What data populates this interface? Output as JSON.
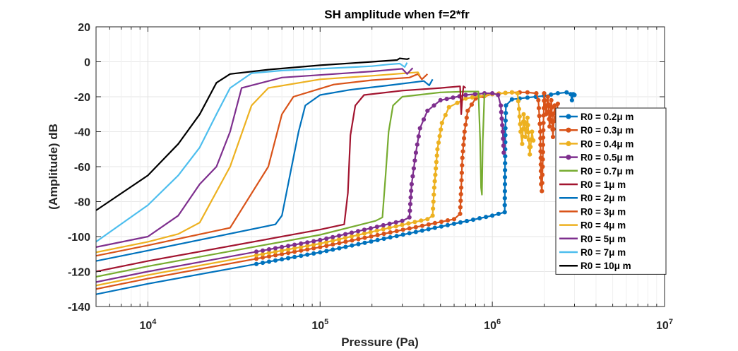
{
  "chart_data": {
    "type": "line",
    "title": "SH amplitude when f=2*fr",
    "xlabel": "Pressure (Pa)",
    "ylabel": "(Amplitude) dB",
    "xscale": "log",
    "xlim": [
      5000,
      10000000
    ],
    "ylim": [
      -140,
      20
    ],
    "grid": true,
    "legend_position": "right",
    "x_ticks": [
      {
        "value": 10000,
        "base": "10",
        "exp": "4"
      },
      {
        "value": 100000,
        "base": "10",
        "exp": "5"
      },
      {
        "value": 1000000,
        "base": "10",
        "exp": "6"
      },
      {
        "value": 10000000,
        "base": "10",
        "exp": "7"
      }
    ],
    "y_ticks": [
      {
        "value": 20,
        "label": "20"
      },
      {
        "value": 0,
        "label": "0"
      },
      {
        "value": -20,
        "label": "-20"
      },
      {
        "value": -40,
        "label": "-40"
      },
      {
        "value": -60,
        "label": "-60"
      },
      {
        "value": -80,
        "label": "-80"
      },
      {
        "value": -100,
        "label": "-100"
      },
      {
        "value": -120,
        "label": "-120"
      },
      {
        "value": -140,
        "label": "-140"
      }
    ],
    "series": [
      {
        "name": "R0 = 0.2μ m",
        "color": "#0072BD",
        "marker": true,
        "markerStart": 40000,
        "points": [
          [
            5000,
            -133
          ],
          [
            10000,
            -127
          ],
          [
            100000,
            -109
          ],
          [
            1000000,
            -88
          ],
          [
            1180000,
            -86
          ],
          [
            1185000,
            -62
          ],
          [
            1190000,
            -38
          ],
          [
            1200000,
            -25
          ],
          [
            1300000,
            -21.5
          ],
          [
            1600000,
            -20.5
          ],
          [
            2000000,
            -19.5
          ],
          [
            2400000,
            -18
          ],
          [
            2700000,
            -17.5
          ],
          [
            2850000,
            -18.5
          ],
          [
            2900000,
            -22
          ],
          [
            2950000,
            -18.5
          ],
          [
            3000000,
            -19
          ]
        ]
      },
      {
        "name": "R0 = 0.3μ m",
        "color": "#D95319",
        "marker": true,
        "markerStart": 40000,
        "points": [
          [
            5000,
            -130
          ],
          [
            10000,
            -124
          ],
          [
            100000,
            -106
          ],
          [
            600000,
            -90
          ],
          [
            650000,
            -87
          ],
          [
            660000,
            -72
          ],
          [
            670000,
            -55
          ],
          [
            690000,
            -40
          ],
          [
            720000,
            -28
          ],
          [
            800000,
            -21
          ],
          [
            1000000,
            -18.5
          ],
          [
            1300000,
            -17.5
          ],
          [
            1600000,
            -17.5
          ],
          [
            1800000,
            -18
          ],
          [
            1850000,
            -22
          ],
          [
            1900000,
            -40
          ],
          [
            1920000,
            -70
          ],
          [
            1940000,
            -74
          ],
          [
            1960000,
            -60
          ],
          [
            1980000,
            -35
          ],
          [
            2000000,
            -18
          ],
          [
            2050000,
            -30
          ],
          [
            2100000,
            -20
          ],
          [
            2150000,
            -37
          ],
          [
            2200000,
            -22
          ],
          [
            2250000,
            -43
          ],
          [
            2300000,
            -25
          ],
          [
            2350000,
            -32
          ],
          [
            2400000,
            -24
          ]
        ]
      },
      {
        "name": "R0 = 0.4μ m",
        "color": "#EDB120",
        "marker": true,
        "markerStart": 40000,
        "points": [
          [
            5000,
            -128
          ],
          [
            10000,
            -122
          ],
          [
            100000,
            -104
          ],
          [
            420000,
            -90
          ],
          [
            450000,
            -88
          ],
          [
            460000,
            -72
          ],
          [
            480000,
            -50
          ],
          [
            510000,
            -35
          ],
          [
            560000,
            -26
          ],
          [
            700000,
            -21
          ],
          [
            1000000,
            -18.5
          ],
          [
            1300000,
            -17.5
          ],
          [
            1400000,
            -18
          ],
          [
            1430000,
            -27
          ],
          [
            1460000,
            -40
          ],
          [
            1490000,
            -47
          ],
          [
            1520000,
            -30
          ],
          [
            1560000,
            -43
          ],
          [
            1600000,
            -32
          ],
          [
            1650000,
            -53
          ],
          [
            1700000,
            -40
          ],
          [
            1730000,
            -45
          ]
        ]
      },
      {
        "name": "R0 = 0.5μ m",
        "color": "#7E2F8E",
        "marker": true,
        "markerStart": 40000,
        "points": [
          [
            5000,
            -126
          ],
          [
            10000,
            -120
          ],
          [
            100000,
            -102
          ],
          [
            300000,
            -91
          ],
          [
            330000,
            -89
          ],
          [
            340000,
            -70
          ],
          [
            360000,
            -52
          ],
          [
            380000,
            -38
          ],
          [
            420000,
            -28
          ],
          [
            500000,
            -22
          ],
          [
            700000,
            -19
          ],
          [
            900000,
            -18
          ],
          [
            1000000,
            -18
          ],
          [
            1080000,
            -19
          ],
          [
            1120000,
            -25
          ],
          [
            1150000,
            -40
          ],
          [
            1165000,
            -52
          ]
        ]
      },
      {
        "name": "R0 = 0.7μ m",
        "color": "#77AC30",
        "marker": false,
        "markerStart": 0,
        "points": [
          [
            5000,
            -123
          ],
          [
            10000,
            -117
          ],
          [
            100000,
            -99
          ],
          [
            210000,
            -91
          ],
          [
            230000,
            -89
          ],
          [
            240000,
            -65
          ],
          [
            250000,
            -40
          ],
          [
            265000,
            -25
          ],
          [
            300000,
            -20
          ],
          [
            500000,
            -17.5
          ],
          [
            700000,
            -17
          ],
          [
            830000,
            -17
          ],
          [
            850000,
            -45
          ],
          [
            860000,
            -72
          ],
          [
            870000,
            -76
          ],
          [
            880000,
            -45
          ],
          [
            900000,
            -18
          ]
        ]
      },
      {
        "name": "R0 = 1μ m",
        "color": "#A2142F",
        "marker": false,
        "markerStart": 0,
        "points": [
          [
            5000,
            -120
          ],
          [
            10000,
            -114
          ],
          [
            100000,
            -96
          ],
          [
            138000,
            -93
          ],
          [
            145000,
            -75
          ],
          [
            150000,
            -42
          ],
          [
            160000,
            -25
          ],
          [
            180000,
            -19
          ],
          [
            300000,
            -16.5
          ],
          [
            500000,
            -15
          ],
          [
            650000,
            -14
          ],
          [
            660000,
            -30
          ],
          [
            670000,
            -20
          ],
          [
            680000,
            -14
          ],
          [
            700000,
            -15
          ]
        ]
      },
      {
        "name": "R0 = 2μ m",
        "color": "#0072BD",
        "marker": false,
        "markerStart": 0,
        "points": [
          [
            5000,
            -114
          ],
          [
            10000,
            -108
          ],
          [
            55000,
            -93
          ],
          [
            60000,
            -88
          ],
          [
            75000,
            -40
          ],
          [
            82000,
            -25
          ],
          [
            100000,
            -19
          ],
          [
            150000,
            -16
          ],
          [
            250000,
            -13.5
          ],
          [
            400000,
            -11
          ],
          [
            430000,
            -13.5
          ],
          [
            450000,
            -10
          ]
        ]
      },
      {
        "name": "R0 = 3μ m",
        "color": "#D95319",
        "marker": false,
        "markerStart": 0,
        "points": [
          [
            5000,
            -111
          ],
          [
            10000,
            -105
          ],
          [
            30000,
            -95
          ],
          [
            50000,
            -60
          ],
          [
            60000,
            -30
          ],
          [
            70000,
            -20
          ],
          [
            120000,
            -13
          ],
          [
            200000,
            -10.5
          ],
          [
            330000,
            -9
          ],
          [
            370000,
            -7
          ],
          [
            390000,
            -10
          ],
          [
            420000,
            -7
          ]
        ]
      },
      {
        "name": "R0 = 4μ m",
        "color": "#EDB120",
        "marker": false,
        "markerStart": 0,
        "points": [
          [
            5000,
            -109
          ],
          [
            10000,
            -103
          ],
          [
            15000,
            -98.5
          ],
          [
            20000,
            -92
          ],
          [
            30000,
            -60
          ],
          [
            40000,
            -25
          ],
          [
            50000,
            -15
          ],
          [
            100000,
            -10
          ],
          [
            200000,
            -8
          ],
          [
            370000,
            -6
          ],
          [
            380000,
            -8
          ]
        ]
      },
      {
        "name": "R0 = 5μ m",
        "color": "#7E2F8E",
        "marker": false,
        "markerStart": 0,
        "points": [
          [
            5000,
            -106
          ],
          [
            10000,
            -100
          ],
          [
            15000,
            -88
          ],
          [
            20000,
            -70
          ],
          [
            25000,
            -60
          ],
          [
            30000,
            -40
          ],
          [
            35000,
            -15
          ],
          [
            60000,
            -9
          ],
          [
            120000,
            -7
          ],
          [
            200000,
            -5.5
          ],
          [
            300000,
            -4
          ],
          [
            320000,
            -7
          ],
          [
            345000,
            -3.5
          ]
        ]
      },
      {
        "name": "R0 = 7μ m",
        "color": "#4DBEEE",
        "marker": false,
        "markerStart": 0,
        "points": [
          [
            5000,
            -103
          ],
          [
            10000,
            -82
          ],
          [
            15000,
            -65
          ],
          [
            20000,
            -49
          ],
          [
            25000,
            -30
          ],
          [
            30000,
            -15
          ],
          [
            40000,
            -6.5
          ],
          [
            60000,
            -5
          ],
          [
            100000,
            -4
          ],
          [
            200000,
            -2.5
          ],
          [
            250000,
            -1.5
          ],
          [
            290000,
            -1
          ],
          [
            310000,
            -3
          ],
          [
            320000,
            -0.5
          ]
        ]
      },
      {
        "name": "R0 = 10μ m",
        "color": "#000000",
        "marker": false,
        "markerStart": 0,
        "points": [
          [
            5000,
            -85
          ],
          [
            10000,
            -65
          ],
          [
            15000,
            -47
          ],
          [
            20000,
            -30
          ],
          [
            25000,
            -12
          ],
          [
            30000,
            -7
          ],
          [
            50000,
            -4.5
          ],
          [
            100000,
            -2
          ],
          [
            200000,
            0
          ],
          [
            280000,
            1
          ],
          [
            290000,
            2
          ],
          [
            320000,
            1.5
          ],
          [
            330000,
            2
          ]
        ]
      }
    ]
  }
}
